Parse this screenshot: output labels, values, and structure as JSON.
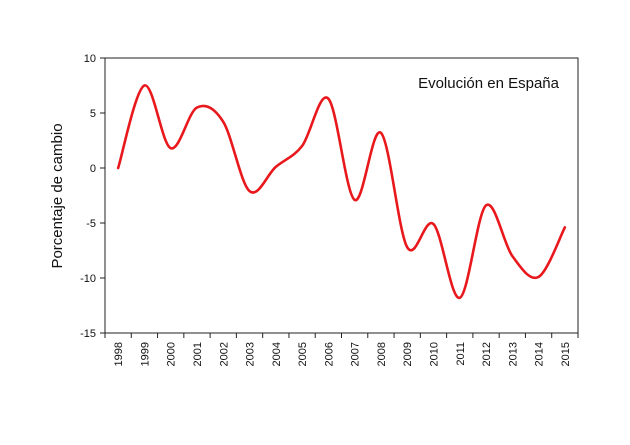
{
  "chart_data": {
    "type": "line",
    "title": "",
    "xlabel": "",
    "ylabel": "Porcentaje de cambio",
    "ylim": [
      -15,
      10
    ],
    "yticks": [
      10,
      5,
      0,
      -5,
      -10,
      -15
    ],
    "grid": false,
    "legend_position": "top-right",
    "x": [
      "1998",
      "1999",
      "2000",
      "2001",
      "2002",
      "2003",
      "2004",
      "2005",
      "2006",
      "2007",
      "2008",
      "2009",
      "2010",
      "2011",
      "2012",
      "2013",
      "2014",
      "2015"
    ],
    "series": [
      {
        "name": "Evolución en España",
        "color": "#e8181c",
        "values": [
          0,
          7.5,
          1.8,
          5.5,
          4.2,
          -2.1,
          0.1,
          2.0,
          6.3,
          -2.9,
          3.2,
          -7.2,
          -5.1,
          -11.8,
          -3.4,
          -8.0,
          -9.9,
          -5.4
        ]
      }
    ]
  }
}
